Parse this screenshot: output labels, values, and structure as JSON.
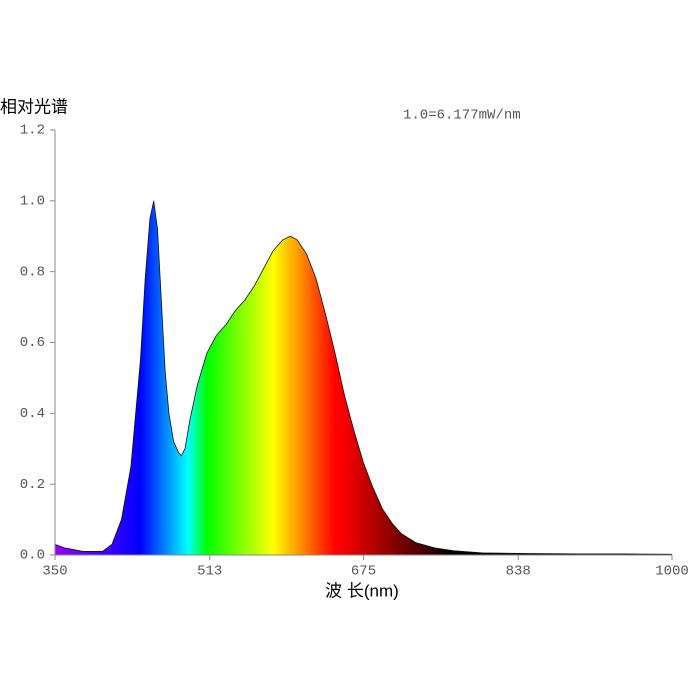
{
  "chart_data": {
    "type": "area",
    "y_label": "相对光谱",
    "annotation": "1.0=6.177mW/nm",
    "x_label": "波 长(nm)",
    "x": [
      350,
      360,
      370,
      380,
      390,
      400,
      410,
      420,
      430,
      440,
      445,
      450,
      454,
      458,
      462,
      466,
      470,
      475,
      480,
      483,
      487,
      492,
      500,
      510,
      520,
      530,
      540,
      550,
      560,
      570,
      580,
      590,
      598,
      605,
      615,
      625,
      635,
      645,
      655,
      665,
      675,
      685,
      695,
      705,
      715,
      730,
      750,
      770,
      800,
      850,
      900,
      950,
      1000
    ],
    "values": [
      0.03,
      0.02,
      0.015,
      0.01,
      0.01,
      0.01,
      0.03,
      0.1,
      0.25,
      0.55,
      0.78,
      0.95,
      1.0,
      0.92,
      0.72,
      0.52,
      0.4,
      0.32,
      0.29,
      0.28,
      0.3,
      0.38,
      0.48,
      0.57,
      0.62,
      0.65,
      0.69,
      0.72,
      0.76,
      0.81,
      0.86,
      0.89,
      0.9,
      0.89,
      0.85,
      0.78,
      0.68,
      0.57,
      0.45,
      0.35,
      0.26,
      0.19,
      0.13,
      0.09,
      0.06,
      0.035,
      0.02,
      0.012,
      0.006,
      0.004,
      0.003,
      0.003,
      0.002
    ],
    "xlim": [
      350,
      1000
    ],
    "xticks": [
      350,
      513,
      675,
      838,
      1000
    ],
    "ylim": [
      0,
      1.2
    ],
    "yticks": [
      {
        "value": 0,
        "label": "0.0"
      },
      0.2,
      0.4,
      0.6,
      0.8,
      {
        "value": 1,
        "label": "1.0"
      },
      1.2
    ]
  }
}
